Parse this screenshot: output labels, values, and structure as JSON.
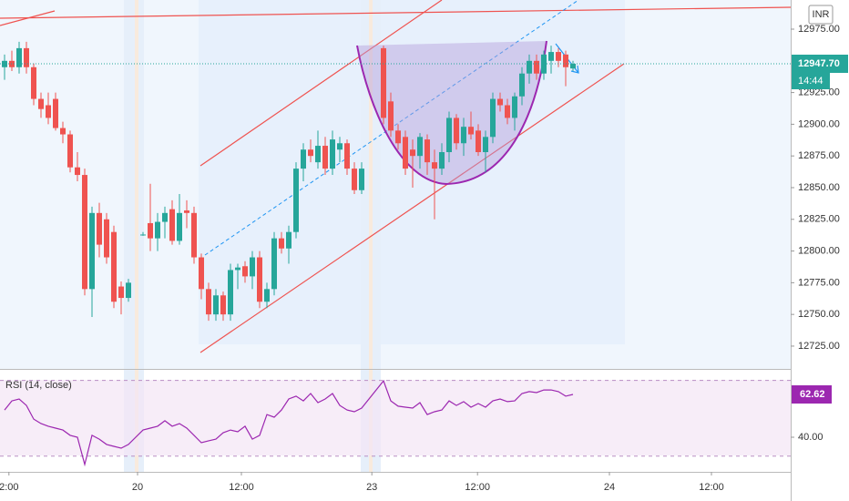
{
  "chart_data": [
    {
      "type": "candlestick",
      "currency": "INR",
      "countdown": "14:44",
      "up_color": "#26a69a",
      "down_color": "#ef5350",
      "grid": false,
      "x": [
        0,
        1,
        2,
        3,
        4,
        5,
        6,
        7,
        8,
        9,
        10,
        11,
        12,
        13,
        14,
        15,
        16,
        17,
        19,
        20,
        21,
        22,
        23,
        24,
        25,
        26,
        27,
        28,
        29,
        30,
        31,
        32,
        33,
        34,
        35,
        36,
        37,
        38,
        39,
        40,
        41,
        42,
        43,
        44,
        45,
        46,
        47,
        48,
        49,
        52,
        53,
        54,
        55,
        56,
        57,
        58,
        59,
        60,
        61,
        62,
        63,
        64,
        65,
        66,
        67,
        68,
        69,
        70,
        71,
        72,
        73,
        74,
        75,
        76,
        77,
        78
      ],
      "open": [
        12945,
        12950,
        12945,
        12960,
        12945,
        12920,
        12915,
        12920,
        12897,
        12892,
        12866,
        12860,
        12770,
        12830,
        12825,
        12815,
        12772,
        12763,
        12813,
        12822,
        12810,
        12823,
        12833,
        12808,
        12832,
        12830,
        12795,
        12770,
        12750,
        12765,
        12750,
        12785,
        12788,
        12780,
        12795,
        12760,
        12770,
        12810,
        12802,
        12815,
        12865,
        12880,
        12870,
        12883,
        12865,
        12880,
        12885,
        12865,
        12848,
        12960,
        12918,
        12895,
        12890,
        12880,
        12875,
        12888,
        12870,
        12865,
        12878,
        12905,
        12885,
        12898,
        12895,
        12878,
        12890,
        12920,
        12915,
        12905,
        12922,
        12940,
        12950,
        12940,
        12950,
        12957,
        12955,
        12944
      ],
      "high": [
        12955,
        12958,
        12965,
        12965,
        12948,
        12925,
        12925,
        12925,
        12902,
        12895,
        12878,
        12865,
        12835,
        12838,
        12830,
        12820,
        12776,
        12778,
        12815,
        12853,
        12830,
        12835,
        12840,
        12845,
        12840,
        12835,
        12798,
        12775,
        12770,
        12768,
        12790,
        12790,
        12792,
        12800,
        12800,
        12775,
        12815,
        12815,
        12820,
        12870,
        12885,
        12888,
        12895,
        12890,
        12895,
        12890,
        12888,
        12870,
        12870,
        12962,
        12925,
        12900,
        12895,
        12888,
        12893,
        12892,
        12880,
        12885,
        12910,
        12908,
        12905,
        12910,
        12900,
        12895,
        12925,
        12925,
        12920,
        12925,
        12945,
        12955,
        12955,
        12958,
        12962,
        12960,
        12958,
        12950
      ],
      "low": [
        12935,
        12942,
        12940,
        12940,
        12915,
        12905,
        12900,
        12895,
        12885,
        12862,
        12855,
        12765,
        12748,
        12795,
        12790,
        12755,
        12750,
        12760,
        12812,
        12800,
        12800,
        12810,
        12805,
        12805,
        12818,
        12790,
        12762,
        12745,
        12745,
        12745,
        12745,
        12770,
        12775,
        12770,
        12755,
        12755,
        12765,
        12798,
        12790,
        12810,
        12855,
        12870,
        12865,
        12860,
        12860,
        12870,
        12860,
        12845,
        12845,
        12900,
        12890,
        12880,
        12860,
        12850,
        12865,
        12860,
        12825,
        12860,
        12870,
        12880,
        12875,
        12888,
        12875,
        12862,
        12885,
        12910,
        12900,
        12895,
        12915,
        12932,
        12935,
        12935,
        12940,
        12945,
        12930,
        12942
      ],
      "close": [
        12950,
        12945,
        12960,
        12945,
        12920,
        12912,
        12905,
        12897,
        12892,
        12866,
        12860,
        12770,
        12830,
        12805,
        12795,
        12760,
        12763,
        12775,
        12813,
        12810,
        12823,
        12830,
        12808,
        12830,
        12830,
        12795,
        12770,
        12750,
        12765,
        12750,
        12785,
        12787,
        12780,
        12795,
        12760,
        12770,
        12810,
        12802,
        12815,
        12865,
        12880,
        12875,
        12883,
        12865,
        12888,
        12885,
        12865,
        12848,
        12865,
        12905,
        12895,
        12885,
        12865,
        12875,
        12890,
        12870,
        12865,
        12878,
        12905,
        12885,
        12898,
        12892,
        12878,
        12890,
        12920,
        12915,
        12905,
        12922,
        12940,
        12950,
        12940,
        12955,
        12957,
        12950,
        12945,
        12947.7
      ],
      "current_price": {
        "value": 12947.7,
        "label": "12947.70"
      },
      "ylim": [
        12707,
        12998
      ],
      "yticks": [
        {
          "value": 12725,
          "label": "12725.00"
        },
        {
          "value": 12750,
          "label": "12750.00"
        },
        {
          "value": 12775,
          "label": "12775.00"
        },
        {
          "value": 12800,
          "label": "12800.00"
        },
        {
          "value": 12825,
          "label": "12825.00"
        },
        {
          "value": 12850,
          "label": "12850.00"
        },
        {
          "value": 12875,
          "label": "12875.00"
        },
        {
          "value": 12900,
          "label": "12900.00"
        },
        {
          "value": 12925,
          "label": "12925.00"
        },
        {
          "value": 12975,
          "label": "12975.00"
        }
      ],
      "xlim": [
        -0.625,
        107.875
      ],
      "xticks": [
        {
          "value": 0.6,
          "label": "2:00"
        },
        {
          "value": 18.25,
          "label": "20"
        },
        {
          "value": 32.5,
          "label": "12:00"
        },
        {
          "value": 50.4,
          "label": "23"
        },
        {
          "value": 64.9,
          "label": "12:00"
        },
        {
          "value": 83,
          "label": "24"
        },
        {
          "value": 97,
          "label": "12:00"
        }
      ]
    },
    {
      "type": "line",
      "name": "RSI (14, close)",
      "color": "#9c27b0",
      "x": [
        0,
        1,
        2,
        3,
        4,
        5,
        6,
        7,
        8,
        9,
        10,
        11,
        12,
        13,
        14,
        15,
        16,
        17,
        19,
        20,
        21,
        22,
        23,
        24,
        25,
        26,
        27,
        28,
        29,
        30,
        31,
        32,
        33,
        34,
        35,
        36,
        37,
        38,
        39,
        40,
        41,
        42,
        43,
        44,
        45,
        46,
        47,
        48,
        49,
        52,
        53,
        54,
        55,
        56,
        57,
        58,
        59,
        60,
        61,
        62,
        63,
        64,
        65,
        66,
        67,
        68,
        69,
        70,
        71,
        72,
        73,
        74,
        75,
        76,
        77,
        78
      ],
      "values": [
        54.4,
        59.2,
        60.2,
        56.8,
        49.6,
        47.2,
        45.8,
        44.8,
        43.8,
        41,
        40,
        25.6,
        41,
        39,
        36.2,
        35.2,
        34.2,
        36.2,
        43.8,
        44.8,
        45.8,
        48.7,
        45.8,
        47.2,
        44.8,
        41,
        37.1,
        38.1,
        39,
        42.4,
        43.8,
        42.9,
        45.8,
        39,
        41,
        52,
        50.6,
        54.4,
        60.2,
        61.7,
        59.2,
        63.1,
        58.3,
        60.2,
        63.1,
        56.8,
        54.4,
        53.5,
        55.4,
        69.8,
        59.2,
        56.4,
        55.9,
        55.4,
        58.3,
        52,
        53.5,
        54.4,
        59.2,
        56.8,
        58.8,
        55.9,
        57.8,
        55.9,
        59.2,
        60.2,
        58.8,
        59.2,
        63.1,
        64.1,
        63.6,
        65,
        65,
        64.1,
        61.7,
        62.62
      ],
      "bands": [
        30,
        70
      ],
      "ylim": [
        21.7,
        73.7
      ],
      "yticks": [
        {
          "value": 40,
          "label": "40.00"
        }
      ]
    }
  ]
}
